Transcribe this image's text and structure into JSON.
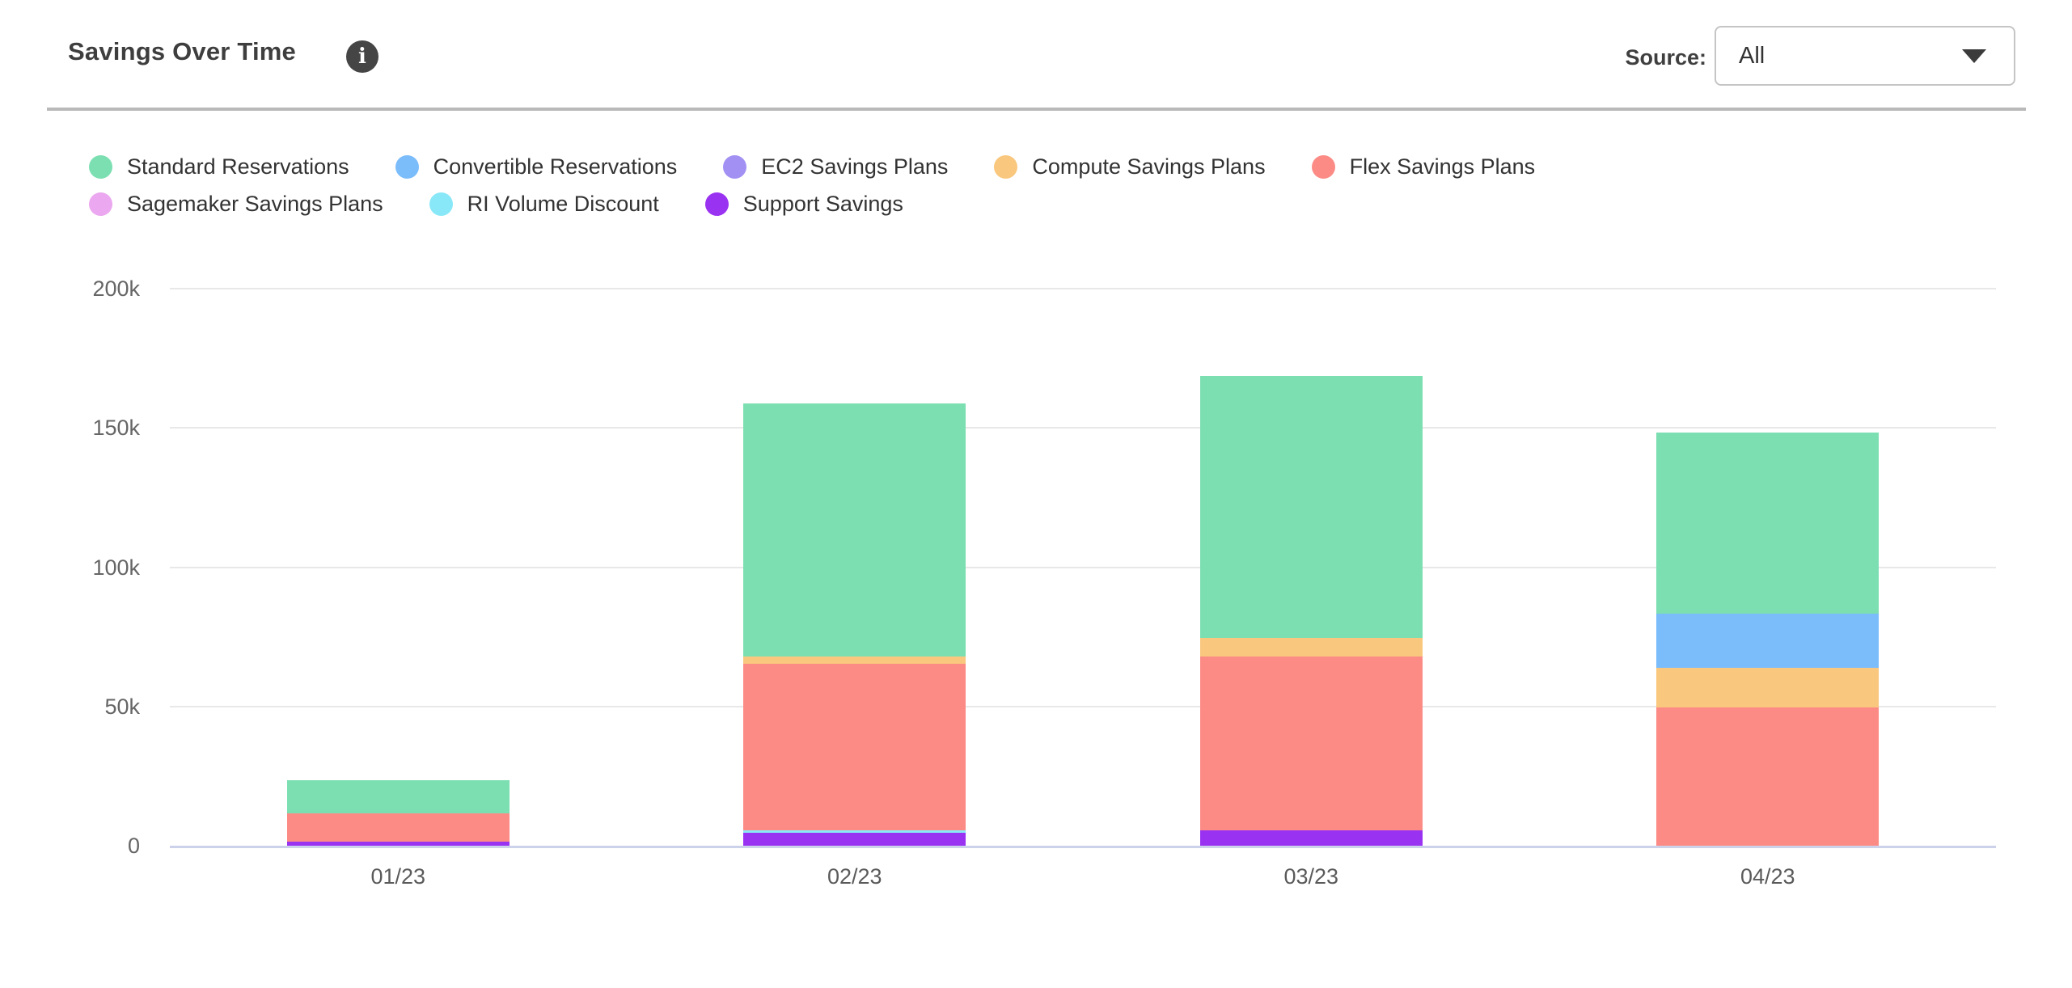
{
  "header": {
    "title": "Savings Over Time",
    "info_icon_glyph": "i",
    "source_label": "Source:",
    "source_value": "All"
  },
  "chart_data": {
    "type": "bar",
    "stacked": true,
    "title": "Savings Over Time",
    "categories": [
      "01/23",
      "02/23",
      "03/23",
      "04/23"
    ],
    "series": [
      {
        "name": "Standard Reservations",
        "color": "#7cdfb2",
        "values": [
          12000,
          91000,
          94000,
          65000
        ]
      },
      {
        "name": "Convertible Reservations",
        "color": "#7bbcfb",
        "values": [
          0,
          0,
          0,
          19300
        ]
      },
      {
        "name": "EC2 Savings Plans",
        "color": "#a290f3",
        "values": [
          0,
          0,
          0,
          0
        ]
      },
      {
        "name": "Compute Savings Plans",
        "color": "#f9c77d",
        "values": [
          0,
          2700,
          6700,
          14300
        ]
      },
      {
        "name": "Flex Savings Plans",
        "color": "#fc8b86",
        "values": [
          10000,
          59700,
          62500,
          49700
        ]
      },
      {
        "name": "Sagemaker Savings Plans",
        "color": "#eba7ef",
        "values": [
          0,
          0,
          0,
          0
        ]
      },
      {
        "name": "RI Volume Discount",
        "color": "#89e8f8",
        "values": [
          0,
          900,
          0,
          0
        ]
      },
      {
        "name": "Support Savings",
        "color": "#9a32f2",
        "values": [
          1500,
          4600,
          5500,
          0
        ]
      }
    ],
    "stack_order_bottom_to_top": [
      "Support Savings",
      "RI Volume Discount",
      "Sagemaker Savings Plans",
      "Flex Savings Plans",
      "Compute Savings Plans",
      "EC2 Savings Plans",
      "Convertible Reservations",
      "Standard Reservations"
    ],
    "totals": [
      23500,
      158900,
      168700,
      148300
    ],
    "y_axis": {
      "tick_labels": [
        "0",
        "50k",
        "100k",
        "150k",
        "200k"
      ],
      "tick_values": [
        0,
        50000,
        100000,
        150000,
        200000
      ],
      "max": 200000
    },
    "grid": true,
    "legend_position": "top",
    "legend_rows": [
      5,
      3
    ],
    "colors": {
      "gridline": "#e8e8e8",
      "axis_line": "#ccd2ea",
      "tick_text": "#666666"
    }
  }
}
